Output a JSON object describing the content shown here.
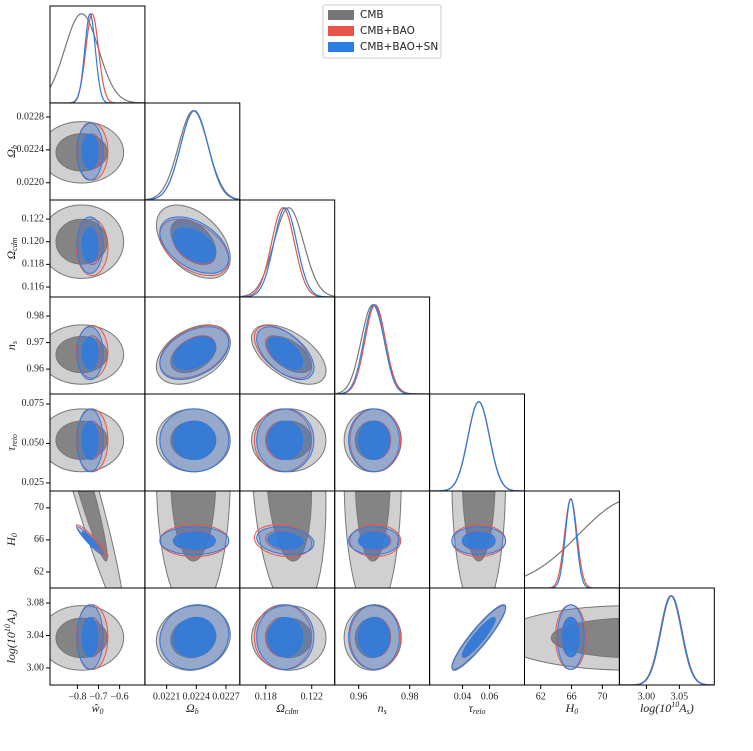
{
  "chart_data": {
    "type": "corner",
    "params": [
      {
        "label_parts": [
          {
            "text": "ŵ"
          },
          {
            "text": "0",
            "pos": "sub"
          }
        ],
        "xlim": [
          -0.93,
          -0.48
        ],
        "xticks": [
          {
            "value": -0.8,
            "label": "−0.8"
          },
          {
            "value": -0.7,
            "label": "−0.7"
          },
          {
            "value": -0.6,
            "label": "−0.6"
          }
        ]
      },
      {
        "label_parts": [
          {
            "text": "Ω"
          },
          {
            "text": "b",
            "pos": "sub"
          }
        ],
        "xlim": [
          0.02188,
          0.02284
        ],
        "xticks": [
          0.0221,
          0.0224,
          0.0227
        ],
        "ylim": [
          0.02179,
          0.02297
        ],
        "yticks": [
          {
            "value": 0.0228,
            "label": "0.0228"
          },
          {
            "value": 0.0224,
            "label": "0.0224"
          },
          {
            "value": 0.022,
            "label": "0.0220"
          }
        ]
      },
      {
        "label_parts": [
          {
            "text": "Ω"
          },
          {
            "text": "cdm",
            "pos": "sub"
          }
        ],
        "xlim": [
          0.11574,
          0.124
        ],
        "xticks": [
          0.118,
          0.122
        ],
        "ylim": [
          0.11512,
          0.12368
        ],
        "yticks": [
          0.122,
          {
            "value": 0.12,
            "label": "0.120"
          },
          0.118,
          0.116
        ]
      },
      {
        "label_parts": [
          {
            "text": "n"
          },
          {
            "text": "s",
            "pos": "sub"
          }
        ],
        "xlim": [
          0.9506,
          0.9878
        ],
        "xticks": [
          0.96,
          0.98
        ],
        "ylim": [
          0.9506,
          0.9872
        ],
        "yticks": [
          0.98,
          0.97,
          0.96
        ]
      },
      {
        "label_parts": [
          {
            "text": "τ"
          },
          {
            "text": "reio",
            "pos": "sub"
          }
        ],
        "xlim": [
          0.0156,
          0.0859
        ],
        "xticks": [
          0.04,
          0.06
        ],
        "ylim": [
          0.0199,
          0.0813
        ],
        "yticks": [
          0.075,
          {
            "value": 0.05,
            "label": "0.050"
          },
          0.025
        ]
      },
      {
        "label_parts": [
          {
            "text": "H"
          },
          {
            "text": "0",
            "pos": "sub"
          }
        ],
        "xlim": [
          59.9,
          72.2
        ],
        "xticks": [
          62,
          66,
          70
        ],
        "ylim": [
          60,
          72.1
        ],
        "yticks": [
          70,
          66,
          62
        ]
      },
      {
        "label_parts": [
          {
            "text": "log(10"
          },
          {
            "text": "10",
            "pos": "sup"
          },
          {
            "text": "A"
          },
          {
            "text": "s",
            "pos": "sub"
          },
          {
            "text": ")"
          }
        ],
        "xlim": [
          2.959,
          3.103
        ],
        "xticks": [
          {
            "value": 3.0,
            "label": "3.00"
          },
          3.05
        ],
        "ylim": [
          2.979,
          3.0985
        ],
        "yticks": [
          3.08,
          3.04,
          {
            "value": 3.0,
            "label": "3.00"
          }
        ]
      }
    ],
    "series": [
      {
        "name": "CMB",
        "color": "#777777",
        "means": [
          -0.78,
          0.02237,
          0.12,
          0.9655,
          0.052,
          74,
          3.037
        ],
        "sigmas": [
          0.08,
          0.00015,
          0.0013,
          0.0045,
          0.008,
          7,
          0.016
        ]
      },
      {
        "name": "CMB+BAO",
        "color": "#e8544a",
        "means": [
          -0.73,
          0.02238,
          0.1195,
          0.9665,
          0.052,
          65.9,
          3.038
        ],
        "sigmas": [
          0.03,
          0.00014,
          0.001,
          0.004,
          0.008,
          0.8,
          0.016
        ]
      },
      {
        "name": "CMB+BAO+SN",
        "color": "#2a7de1",
        "means": [
          -0.74,
          0.02238,
          0.1197,
          0.966,
          0.052,
          65.9,
          3.038
        ],
        "sigmas": [
          0.025,
          0.00014,
          0.001,
          0.004,
          0.008,
          0.7,
          0.016
        ]
      }
    ],
    "correlations": [
      [
        0,
        5,
        -0.95
      ],
      [
        1,
        2,
        -0.45
      ],
      [
        1,
        3,
        0.4
      ],
      [
        2,
        3,
        -0.55
      ],
      [
        4,
        6,
        0.92
      ],
      [
        1,
        6,
        0.1
      ],
      [
        2,
        5,
        -0.2
      ]
    ]
  }
}
